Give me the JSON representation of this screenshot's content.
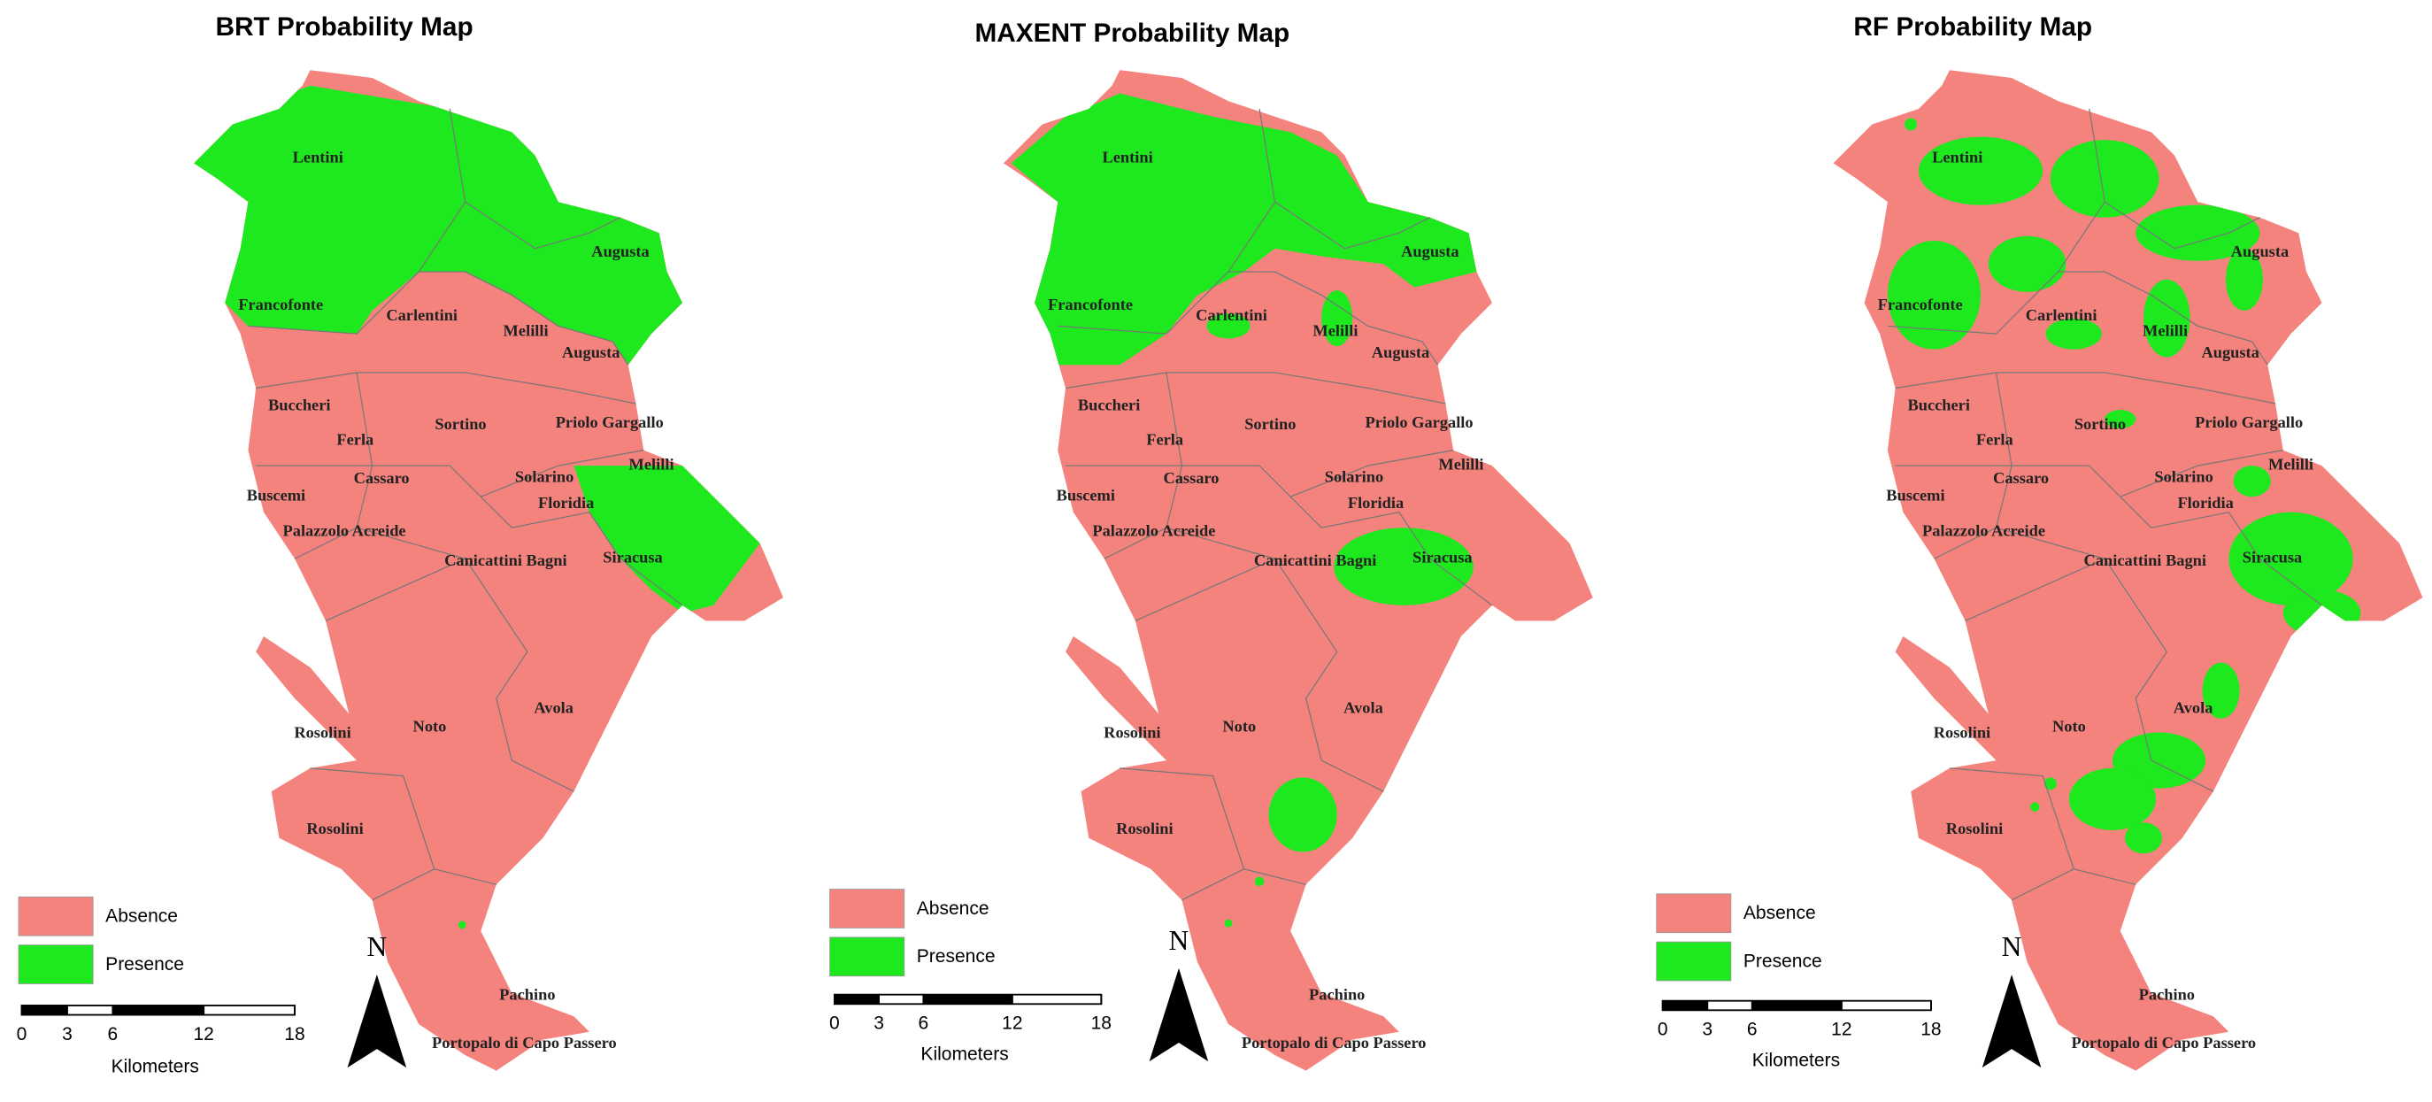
{
  "maps": [
    {
      "title": "BRT Probability Map",
      "places": [
        "Lentini",
        "Augusta",
        "Francofonte",
        "Carlentini",
        "Melilli",
        "Augusta",
        "Buccheri",
        "Sortino",
        "Priolo Gargallo",
        "Ferla",
        "Melilli",
        "Cassaro",
        "Solarino",
        "Buscemi",
        "Floridia",
        "Palazzolo Acreide",
        "Canicattini Bagni",
        "Siracusa",
        "Avola",
        "Noto",
        "Rosolini",
        "Rosolini",
        "Pachino",
        "Portopalo di Capo Passero"
      ],
      "legend": [
        "Absence",
        "Presence"
      ],
      "north": "N",
      "scale": {
        "ticks": [
          0,
          3,
          6,
          12,
          18
        ],
        "unit": "Kilometers"
      }
    },
    {
      "title": "MAXENT Probability Map",
      "places": [
        "Lentini",
        "Augusta",
        "Francofonte",
        "Carlentini",
        "Melilli",
        "Augusta",
        "Buccheri",
        "Sortino",
        "Priolo Gargallo",
        "Ferla",
        "Melilli",
        "Cassaro",
        "Solarino",
        "Buscemi",
        "Floridia",
        "Palazzolo Acreide",
        "Canicattini Bagni",
        "Siracusa",
        "Avola",
        "Noto",
        "Rosolini",
        "Rosolini",
        "Pachino",
        "Portopalo di Capo Passero"
      ],
      "legend": [
        "Absence",
        "Presence"
      ],
      "north": "N",
      "scale": {
        "ticks": [
          0,
          3,
          6,
          12,
          18
        ],
        "unit": "Kilometers"
      }
    },
    {
      "title": "RF Probability Map",
      "places": [
        "Lentini",
        "Augusta",
        "Francofonte",
        "Carlentini",
        "Melilli",
        "Augusta",
        "Buccheri",
        "Sortino",
        "Priolo Gargallo",
        "Ferla",
        "Melilli",
        "Cassaro",
        "Solarino",
        "Buscemi",
        "Floridia",
        "Palazzolo Acreide",
        "Canicattini Bagni",
        "Siracusa",
        "Avola",
        "Noto",
        "Rosolini",
        "Rosolini",
        "Pachino",
        "Portopalo di Capo Passero"
      ],
      "legend": [
        "Absence",
        "Presence"
      ],
      "north": "N",
      "scale": {
        "ticks": [
          0,
          3,
          6,
          12,
          18
        ],
        "unit": "Kilometers"
      }
    }
  ]
}
